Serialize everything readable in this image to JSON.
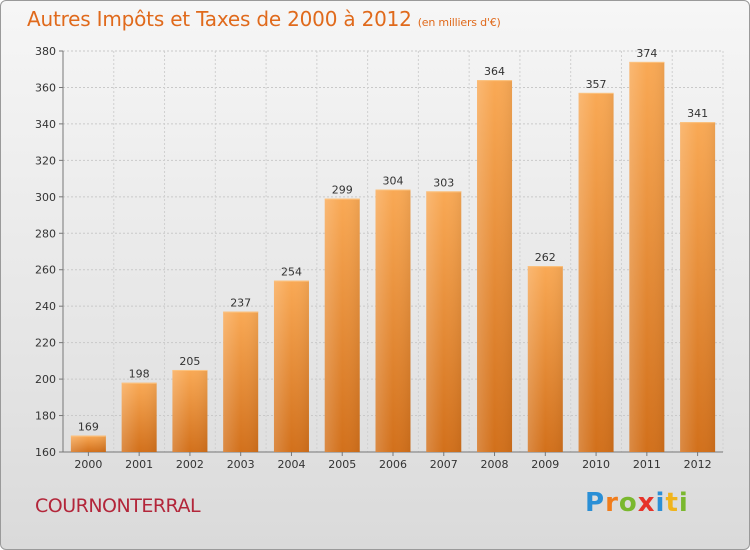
{
  "header": {
    "title": "Autres Impôts et Taxes de 2000 à 2012",
    "subtitle": "(en milliers d'€)"
  },
  "footer": {
    "commune": "COURNONTERRAL",
    "logo": "Proxiti"
  },
  "colors": {
    "title": "#e06a1c",
    "commune": "#b3263a",
    "bar_light": "#f8a552",
    "bar_dark": "#d4721c"
  },
  "chart_data": {
    "type": "bar",
    "categories": [
      "2000",
      "2001",
      "2002",
      "2003",
      "2004",
      "2005",
      "2006",
      "2007",
      "2008",
      "2009",
      "2010",
      "2011",
      "2012"
    ],
    "values": [
      169,
      198,
      205,
      237,
      254,
      299,
      304,
      303,
      364,
      262,
      357,
      374,
      341
    ],
    "ylim": [
      160,
      380
    ],
    "yticks": [
      160,
      180,
      200,
      220,
      240,
      260,
      280,
      300,
      320,
      340,
      360,
      380
    ],
    "grid": true
  }
}
